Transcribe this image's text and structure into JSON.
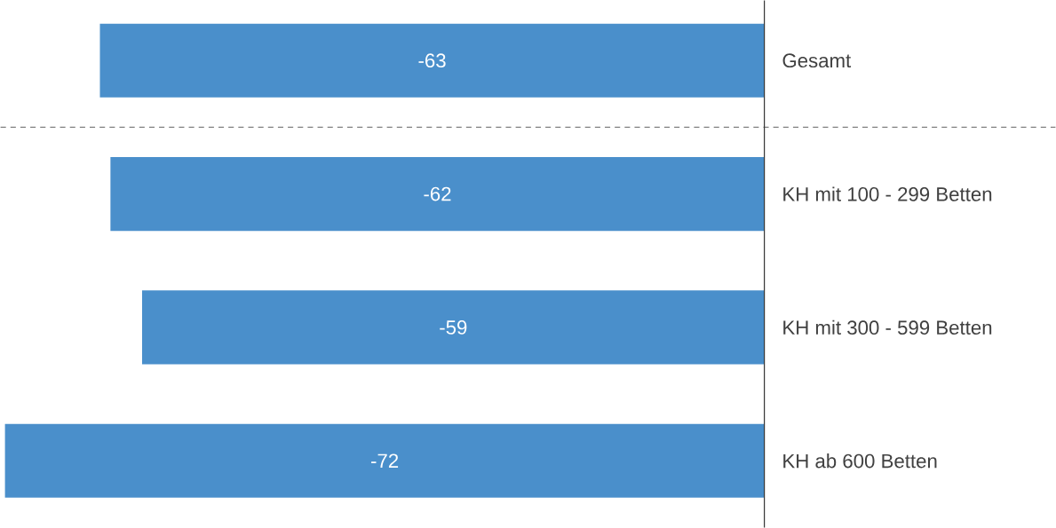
{
  "chart_data": {
    "type": "bar",
    "orientation": "horizontal",
    "categories": [
      "Gesamt",
      "KH mit 100 - 299 Betten",
      "KH mit 300 - 599 Betten",
      "KH ab 600 Betten"
    ],
    "values": [
      -63,
      -62,
      -59,
      -72
    ],
    "color": "#4a8fcb",
    "data_labels": true
  }
}
